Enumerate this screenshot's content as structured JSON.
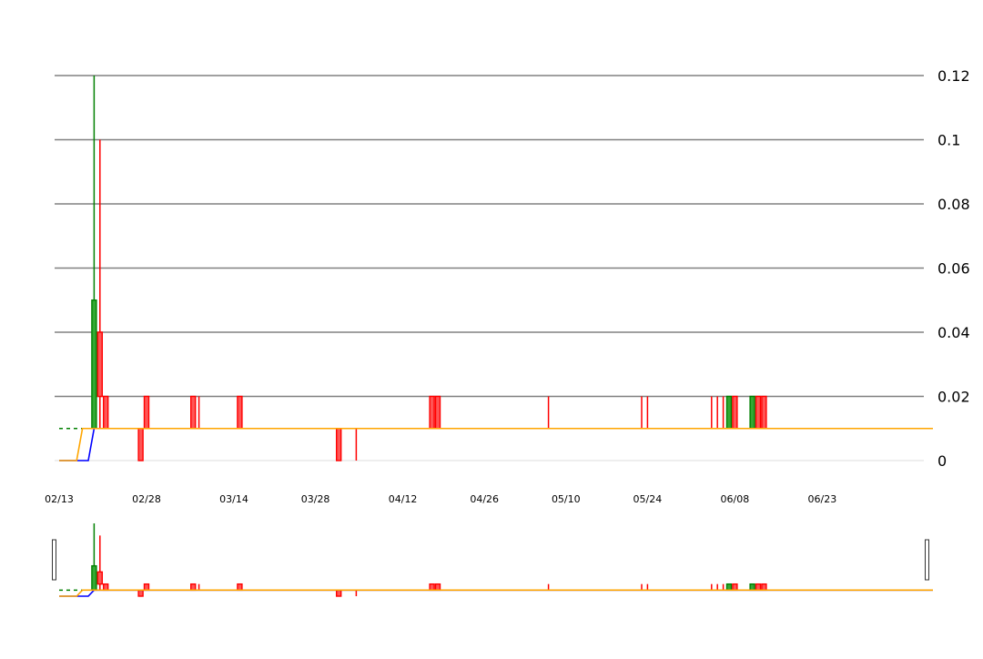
{
  "chart_data": {
    "type": "candlestick",
    "y_ticks": [
      "0",
      "0.02",
      "0.04",
      "0.06",
      "0.08",
      "0.1",
      "0.12"
    ],
    "y_tick_values": [
      0,
      0.02,
      0.04,
      0.06,
      0.08,
      0.1,
      0.12
    ],
    "ylim": [
      0,
      0.12
    ],
    "x_ticks": [
      "02/13",
      "02/28",
      "03/14",
      "03/28",
      "04/12",
      "04/26",
      "05/10",
      "05/24",
      "06/08",
      "06/23"
    ],
    "x_tick_dates": [
      "2024-02-13",
      "2024-02-28",
      "2024-03-14",
      "2024-03-28",
      "2024-04-12",
      "2024-04-26",
      "2024-05-10",
      "2024-05-24",
      "2024-06-08",
      "2024-06-23"
    ],
    "xlim": [
      "2024-02-13",
      "2024-07-12"
    ],
    "grid": "horizontal",
    "colors": {
      "up": "#008000",
      "down": "#ff0000",
      "ma_short": "#0000ff",
      "ma_long": "#ffa500",
      "grid": "#808080"
    },
    "reference_line": {
      "value": 0.01,
      "start": "2024-02-13",
      "end": "2024-02-17",
      "color": "#008000",
      "style": "dashed"
    },
    "candles": [
      {
        "date": "2024-02-19",
        "open": 0.01,
        "close": 0.05,
        "high": 0.12,
        "low": 0.01
      },
      {
        "date": "2024-02-20",
        "open": 0.04,
        "close": 0.02,
        "high": 0.1,
        "low": 0.01
      },
      {
        "date": "2024-02-21",
        "open": 0.02,
        "close": 0.01,
        "high": 0.02,
        "low": 0.01
      },
      {
        "date": "2024-02-27",
        "open": 0.01,
        "close": 0.0,
        "high": 0.01,
        "low": 0.0
      },
      {
        "date": "2024-02-28",
        "open": 0.02,
        "close": 0.01,
        "high": 0.02,
        "low": 0.01
      },
      {
        "date": "2024-03-07",
        "open": 0.02,
        "close": 0.01,
        "high": 0.02,
        "low": 0.01
      },
      {
        "date": "2024-03-08",
        "open": 0.01,
        "close": 0.01,
        "high": 0.02,
        "low": 0.01
      },
      {
        "date": "2024-03-15",
        "open": 0.02,
        "close": 0.01,
        "high": 0.02,
        "low": 0.01
      },
      {
        "date": "2024-04-01",
        "open": 0.01,
        "close": 0.0,
        "high": 0.01,
        "low": 0.0
      },
      {
        "date": "2024-04-04",
        "open": 0.01,
        "close": 0.01,
        "high": 0.01,
        "low": 0.0
      },
      {
        "date": "2024-04-17",
        "open": 0.02,
        "close": 0.01,
        "high": 0.02,
        "low": 0.01
      },
      {
        "date": "2024-04-18",
        "open": 0.02,
        "close": 0.01,
        "high": 0.02,
        "low": 0.01
      },
      {
        "date": "2024-05-07",
        "open": 0.01,
        "close": 0.01,
        "high": 0.02,
        "low": 0.01
      },
      {
        "date": "2024-05-23",
        "open": 0.01,
        "close": 0.01,
        "high": 0.02,
        "low": 0.01
      },
      {
        "date": "2024-05-24",
        "open": 0.01,
        "close": 0.01,
        "high": 0.02,
        "low": 0.01
      },
      {
        "date": "2024-06-04",
        "open": 0.01,
        "close": 0.01,
        "high": 0.02,
        "low": 0.01
      },
      {
        "date": "2024-06-05",
        "open": 0.01,
        "close": 0.01,
        "high": 0.02,
        "low": 0.01
      },
      {
        "date": "2024-06-06",
        "open": 0.01,
        "close": 0.01,
        "high": 0.02,
        "low": 0.01
      },
      {
        "date": "2024-06-07",
        "open": 0.01,
        "close": 0.02,
        "high": 0.02,
        "low": 0.01
      },
      {
        "date": "2024-06-08",
        "open": 0.02,
        "close": 0.01,
        "high": 0.02,
        "low": 0.01
      },
      {
        "date": "2024-06-11",
        "open": 0.01,
        "close": 0.02,
        "high": 0.02,
        "low": 0.01
      },
      {
        "date": "2024-06-12",
        "open": 0.02,
        "close": 0.01,
        "high": 0.02,
        "low": 0.01
      },
      {
        "date": "2024-06-13",
        "open": 0.02,
        "close": 0.01,
        "high": 0.02,
        "low": 0.01
      }
    ],
    "ma_short": [
      {
        "date": "2024-02-13",
        "value": 0.0
      },
      {
        "date": "2024-02-16",
        "value": 0.0
      },
      {
        "date": "2024-02-18",
        "value": 0.0
      },
      {
        "date": "2024-02-19",
        "value": 0.01
      },
      {
        "date": "2024-07-12",
        "value": 0.01
      }
    ],
    "ma_long": [
      {
        "date": "2024-02-13",
        "value": 0.0
      },
      {
        "date": "2024-02-16",
        "value": 0.0
      },
      {
        "date": "2024-02-17",
        "value": 0.01
      },
      {
        "date": "2024-07-12",
        "value": 0.01
      }
    ]
  }
}
